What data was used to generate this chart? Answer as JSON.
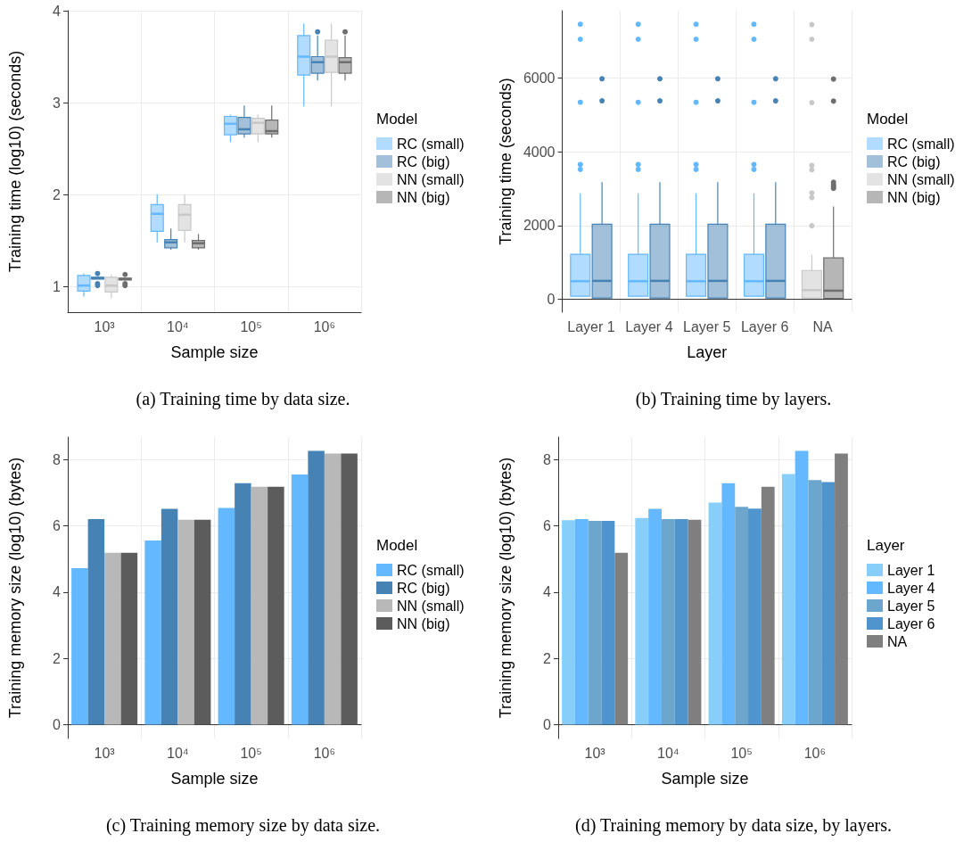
{
  "chart_data": [
    {
      "type": "box",
      "categories": [
        "10³",
        "10⁴",
        "10⁵",
        "10⁶"
      ],
      "xlabel": "Sample size",
      "ylabel": "Training time (log10) (seconds)",
      "ylim": [
        0.72,
        4
      ],
      "yticks": [
        1,
        2,
        3,
        4
      ],
      "grid": true,
      "legend": "right",
      "legend_title": "Model",
      "annotations": [
        "(a) Training time by data size."
      ],
      "series": [
        {
          "name": "RC (small)",
          "color": "#63b8ff",
          "boxes": [
            {
              "low": 0.89,
              "q1": 0.95,
              "median": 1.01,
              "q3": 1.12,
              "high": 1.14
            },
            {
              "low": 1.48,
              "q1": 1.6,
              "median": 1.79,
              "q3": 1.89,
              "high": 2.0
            },
            {
              "low": 2.57,
              "q1": 2.65,
              "median": 2.77,
              "q3": 2.85,
              "high": 2.87
            },
            {
              "low": 2.96,
              "q1": 3.3,
              "median": 3.5,
              "q3": 3.73,
              "high": 3.86
            }
          ]
        },
        {
          "name": "RC (big)",
          "color": "#4682b4",
          "boxes": [
            {
              "low": 1.08,
              "q1": 1.08,
              "median": 1.09,
              "q3": 1.1,
              "high": 1.1,
              "outliers": [
                1.14,
                1.03,
                1.01
              ]
            },
            {
              "low": 1.4,
              "q1": 1.42,
              "median": 1.48,
              "q3": 1.51,
              "high": 1.63
            },
            {
              "low": 2.62,
              "q1": 2.66,
              "median": 2.71,
              "q3": 2.84,
              "high": 2.97
            },
            {
              "low": 3.24,
              "q1": 3.32,
              "median": 3.44,
              "q3": 3.5,
              "high": 3.73,
              "outliers": [
                3.77
              ]
            }
          ]
        },
        {
          "name": "NN (small)",
          "color": "#c8c8c8",
          "boxes": [
            {
              "low": 0.87,
              "q1": 0.94,
              "median": 1.01,
              "q3": 1.1,
              "high": 1.13
            },
            {
              "low": 1.48,
              "q1": 1.61,
              "median": 1.78,
              "q3": 1.89,
              "high": 2.0
            },
            {
              "low": 2.57,
              "q1": 2.66,
              "median": 2.78,
              "q3": 2.83,
              "high": 2.87
            },
            {
              "low": 2.96,
              "q1": 3.33,
              "median": 3.5,
              "q3": 3.68,
              "high": 3.86
            }
          ]
        },
        {
          "name": "NN (big)",
          "color": "#6e6e6e",
          "boxes": [
            {
              "low": 1.07,
              "q1": 1.07,
              "median": 1.08,
              "q3": 1.09,
              "high": 1.09,
              "outliers": [
                1.13,
                1.01,
                1.03
              ]
            },
            {
              "low": 1.4,
              "q1": 1.42,
              "median": 1.47,
              "q3": 1.5,
              "high": 1.57
            },
            {
              "low": 2.62,
              "q1": 2.66,
              "median": 2.69,
              "q3": 2.81,
              "high": 2.97
            },
            {
              "low": 3.24,
              "q1": 3.32,
              "median": 3.44,
              "q3": 3.49,
              "high": 3.73,
              "outliers": [
                3.77
              ]
            }
          ]
        }
      ]
    },
    {
      "type": "box",
      "categories": [
        "Layer 1",
        "Layer 4",
        "Layer 5",
        "Layer 6",
        "NA"
      ],
      "xlabel": "Layer",
      "ylabel": "Training time (seconds)",
      "ylim": [
        -350,
        7830
      ],
      "yticks": [
        0,
        2000,
        4000,
        6000
      ],
      "grid": true,
      "legend": "right",
      "legend_title": "Model",
      "annotations": [
        "(b) Training time by layers."
      ],
      "series": [
        {
          "name": "RC (small)",
          "color": "#63b8ff",
          "boxes": [
            {
              "low": 83,
              "q1": 83,
              "median": 490,
              "q3": 1222,
              "high": 2875,
              "outliers": [
                7463,
                7056,
                5344,
                3657,
                3524
              ]
            },
            {
              "low": 83,
              "q1": 83,
              "median": 490,
              "q3": 1222,
              "high": 2875,
              "outliers": [
                7463,
                7056,
                5344,
                3657,
                3524
              ]
            },
            {
              "low": 83,
              "q1": 83,
              "median": 490,
              "q3": 1222,
              "high": 2875,
              "outliers": [
                7463,
                7056,
                5344,
                3657,
                3524
              ]
            },
            {
              "low": 83,
              "q1": 83,
              "median": 490,
              "q3": 1222,
              "high": 2875,
              "outliers": [
                7463,
                7056,
                5344,
                3657,
                3524
              ]
            },
            null
          ]
        },
        {
          "name": "RC (big)",
          "color": "#4682b4",
          "boxes": [
            {
              "low": 33,
              "q1": 33,
              "median": 499,
              "q3": 2036,
              "high": 3175,
              "outliers": [
                5984,
                5385
              ]
            },
            {
              "low": 33,
              "q1": 33,
              "median": 499,
              "q3": 2036,
              "high": 3175,
              "outliers": [
                5984,
                5385
              ]
            },
            {
              "low": 33,
              "q1": 33,
              "median": 499,
              "q3": 2036,
              "high": 3175,
              "outliers": [
                5984,
                5385
              ]
            },
            {
              "low": 33,
              "q1": 33,
              "median": 499,
              "q3": 2036,
              "high": 3175,
              "outliers": [
                5984,
                5385
              ]
            },
            null
          ]
        },
        {
          "name": "NN (small)",
          "color": "#c8c8c8",
          "boxes": [
            null,
            null,
            null,
            null,
            {
              "low": 33,
              "q1": 33,
              "median": 249,
              "q3": 781,
              "high": 1205,
              "outliers": [
                7454,
                7056,
                5335,
                3632,
                3515,
                2884,
                2759,
                1994
              ]
            }
          ]
        },
        {
          "name": "NN (big)",
          "color": "#6e6e6e",
          "boxes": [
            null,
            null,
            null,
            null,
            {
              "low": 25,
              "q1": 25,
              "median": 233,
              "q3": 1122,
              "high": 2518,
              "outliers": [
                5975,
                5377,
                3175,
                3100,
                3050,
                3008
              ]
            }
          ]
        }
      ]
    },
    {
      "type": "bar",
      "categories": [
        "10³",
        "10⁴",
        "10⁵",
        "10⁶"
      ],
      "xlabel": "Sample size",
      "ylabel": "Training memory size (log10) (bytes)",
      "ylim": [
        -0.42,
        8.68
      ],
      "yticks": [
        0,
        2,
        4,
        6,
        8
      ],
      "grid": true,
      "legend": "right",
      "legend_title": "Model",
      "annotations": [
        "(c) Training memory size by data size."
      ],
      "series": [
        {
          "name": "RC (small)",
          "color": "#63b8ff",
          "values": [
            4.72,
            5.56,
            6.54,
            7.55
          ]
        },
        {
          "name": "RC (big)",
          "color": "#4682b4",
          "values": [
            6.2,
            6.51,
            7.29,
            8.26
          ]
        },
        {
          "name": "NN (small)",
          "color": "#b8b8b8",
          "values": [
            5.19,
            6.18,
            7.18,
            8.18
          ]
        },
        {
          "name": "NN (big)",
          "color": "#5c5c5c",
          "values": [
            5.19,
            6.18,
            7.18,
            8.18
          ]
        }
      ]
    },
    {
      "type": "bar",
      "categories": [
        "10³",
        "10⁴",
        "10⁵",
        "10⁶"
      ],
      "xlabel": "Sample size",
      "ylabel": "Training memory size (log10) (bytes)",
      "ylim": [
        -0.42,
        8.68
      ],
      "yticks": [
        0,
        2,
        4,
        6,
        8
      ],
      "grid": true,
      "legend": "right",
      "legend_title": "Layer",
      "annotations": [
        "(d) Training memory by data size, by layers."
      ],
      "series": [
        {
          "name": "Layer 1",
          "color": "#87cefa",
          "values": [
            6.17,
            6.24,
            6.7,
            7.56
          ]
        },
        {
          "name": "Layer 4",
          "color": "#63b8ff",
          "values": [
            6.2,
            6.51,
            7.29,
            8.26
          ]
        },
        {
          "name": "Layer 5",
          "color": "#6ca6cd",
          "values": [
            6.15,
            6.2,
            6.57,
            7.38
          ]
        },
        {
          "name": "Layer 6",
          "color": "#4f94cd",
          "values": [
            6.15,
            6.2,
            6.52,
            7.32
          ]
        },
        {
          "name": "NA",
          "color": "#7f7f7f",
          "values": [
            5.19,
            6.18,
            7.18,
            8.18
          ]
        }
      ]
    }
  ]
}
